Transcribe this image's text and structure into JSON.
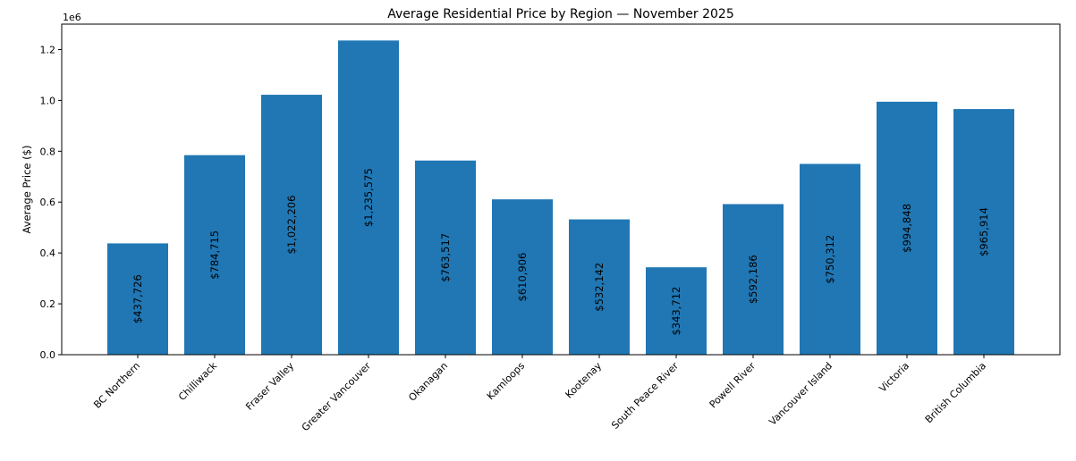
{
  "chart_data": {
    "type": "bar",
    "title": "Average Residential Price by Region — November 2025",
    "xlabel": "",
    "ylabel": "Average Price ($)",
    "y_offset_label": "1e6",
    "y_scale": 1000000,
    "ylim": [
      0,
      1300000
    ],
    "yticks": [
      0.0,
      0.2,
      0.4,
      0.6,
      0.8,
      1.0,
      1.2
    ],
    "ytick_labels": [
      "0.0",
      "0.2",
      "0.4",
      "0.6",
      "0.8",
      "1.0",
      "1.2"
    ],
    "categories": [
      "BC Northern",
      "Chilliwack",
      "Fraser Valley",
      "Greater Vancouver",
      "Okanagan",
      "Kamloops",
      "Kootenay",
      "South Peace River",
      "Powell River",
      "Vancouver Island",
      "Victoria",
      "British Columbia"
    ],
    "values": [
      437726,
      784715,
      1022206,
      1235575,
      763517,
      610906,
      532142,
      343712,
      592186,
      750312,
      994848,
      965914
    ],
    "value_labels": [
      "$437,726",
      "$784,715",
      "$1,022,206",
      "$1,235,575",
      "$763,517",
      "$610,906",
      "$532,142",
      "$343,712",
      "$592,186",
      "$750,312",
      "$994,848",
      "$965,914"
    ],
    "bar_color": "#2077b4",
    "grid": false,
    "legend": "none"
  }
}
